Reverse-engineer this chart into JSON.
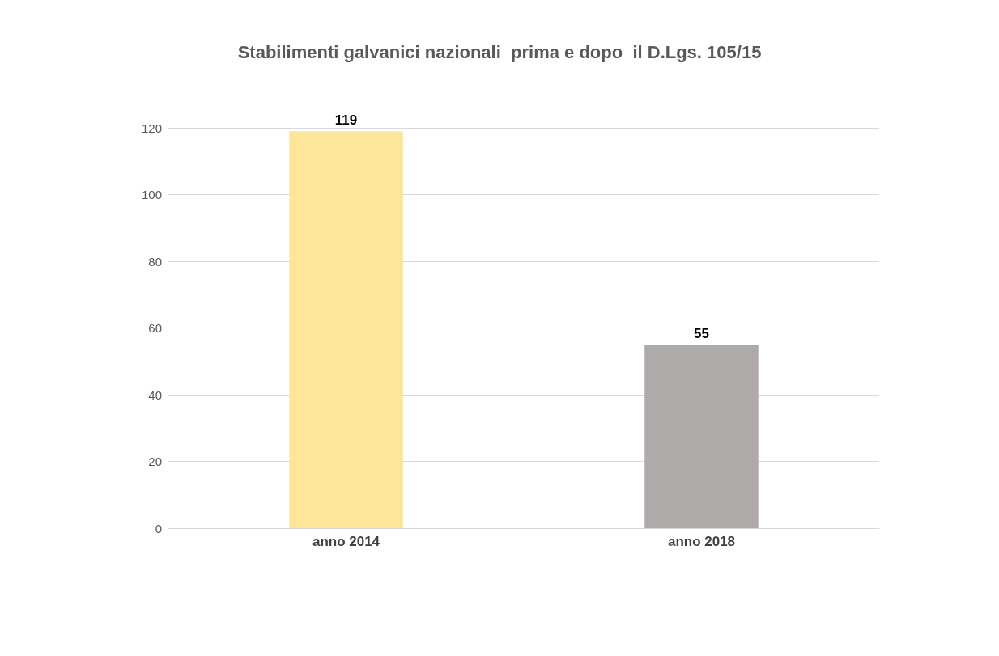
{
  "chart_data": {
    "type": "bar",
    "title": "Stabilimenti galvanici nazionali  prima e dopo  il D.Lgs. 105/15",
    "categories": [
      "anno 2014",
      "anno 2018"
    ],
    "values": [
      119,
      55
    ],
    "colors": [
      "#fde699",
      "#aeaaaa"
    ],
    "ylim": [
      0,
      120
    ],
    "yticks": [
      0,
      20,
      40,
      60,
      80,
      100,
      120
    ],
    "grid": "y",
    "data_labels": true
  }
}
